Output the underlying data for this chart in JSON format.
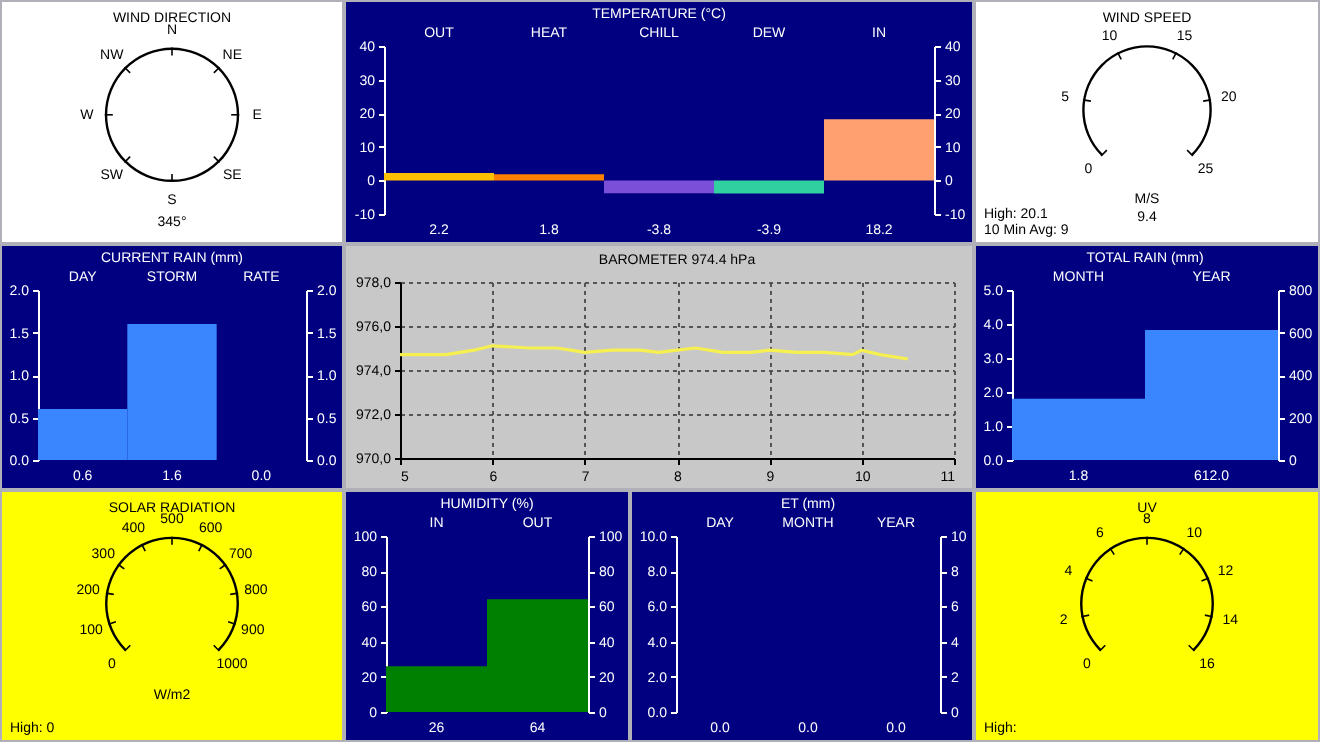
{
  "chart_data": [
    {
      "type": "other",
      "title": "WIND DIRECTION",
      "categories": [
        "N",
        "NE",
        "E",
        "SE",
        "S",
        "SW",
        "W",
        "NW"
      ],
      "subtitle": "345°"
    },
    {
      "type": "bar",
      "title": "TEMPERATURE (°C)",
      "categories": [
        "OUT",
        "HEAT",
        "CHILL",
        "DEW",
        "IN"
      ],
      "values": [
        2.2,
        1.8,
        -3.8,
        -3.9,
        18.2
      ],
      "colors": [
        "#ffc000",
        "#ff8000",
        "#7b4fd8",
        "#30d0a0",
        "#ffa070"
      ],
      "data_labels": true,
      "ylim": [
        -10,
        40
      ],
      "yticks": [
        -10,
        0,
        10,
        20,
        30,
        40
      ],
      "y2lim": [
        -10,
        40
      ],
      "y2ticks": [
        -10,
        0,
        10,
        20,
        30,
        40
      ]
    },
    {
      "type": "other",
      "title": "WIND SPEED",
      "categories": [
        "0",
        "5",
        "10",
        "15",
        "20",
        "25"
      ],
      "xlabel": "M/S",
      "subtitle": "9.4",
      "annotations": [
        "High: 20.1",
        "10 Min Avg: 9"
      ]
    },
    {
      "type": "bar",
      "title": "CURRENT RAIN (mm)",
      "categories": [
        "DAY",
        "STORM",
        "RATE"
      ],
      "values": [
        0.6,
        1.6,
        0.0
      ],
      "value_labels": [
        "0.6",
        "1.6",
        "0.0"
      ],
      "color": "#3a86ff",
      "ylim": [
        0,
        2
      ],
      "yticks": [
        {
          "value": 0,
          "label": "0.0"
        },
        {
          "value": 0.5,
          "label": "0.5"
        },
        {
          "value": 1,
          "label": "1.0"
        },
        {
          "value": 1.5,
          "label": "1.5"
        },
        {
          "value": 2,
          "label": "2.0"
        }
      ],
      "y2lim": [
        0,
        2
      ],
      "y2ticks": [
        {
          "value": 0,
          "label": "0.0"
        },
        {
          "value": 0.5,
          "label": "0.5"
        },
        {
          "value": 1,
          "label": "1.0"
        },
        {
          "value": 1.5,
          "label": "1.5"
        },
        {
          "value": 2,
          "label": "2.0"
        }
      ]
    },
    {
      "type": "line",
      "title": "BAROMETER 974.4 hPa",
      "series": [
        {
          "color": "#f5f050",
          "x": [
            5,
            5.5,
            5.8,
            6,
            6.4,
            6.7,
            7,
            7.3,
            7.6,
            7.8,
            8,
            8.2,
            8.5,
            8.8,
            9,
            9.3,
            9.6,
            9.9,
            10,
            10.2,
            10.5
          ],
          "values": [
            974.7,
            974.7,
            974.9,
            975.1,
            975.0,
            975.0,
            974.8,
            974.9,
            974.9,
            974.8,
            974.9,
            975.0,
            974.8,
            974.8,
            974.9,
            974.8,
            974.8,
            974.7,
            974.9,
            974.7,
            974.5
          ]
        }
      ],
      "xlim": [
        5,
        11
      ],
      "xticks": [
        5,
        6,
        7,
        8,
        9,
        10,
        11
      ],
      "ylim": [
        970,
        978
      ],
      "yticks": [
        {
          "value": 970,
          "label": "970,0"
        },
        {
          "value": 972,
          "label": "972,0"
        },
        {
          "value": 974,
          "label": "974,0"
        },
        {
          "value": 976,
          "label": "976,0"
        },
        {
          "value": 978,
          "label": "978,0"
        }
      ],
      "grid": true
    },
    {
      "type": "bar",
      "title": "TOTAL RAIN (mm)",
      "categories": [
        "MONTH",
        "YEAR"
      ],
      "series": [
        {
          "color": "#3a86ff",
          "values": [
            1.8,
            null
          ],
          "value_labels": [
            "1.8",
            null
          ]
        },
        {
          "color": "#3a86ff",
          "values": [
            null,
            612.0
          ],
          "value_labels": [
            null,
            "612.0"
          ],
          "axis": "y2"
        }
      ],
      "ylim": [
        0,
        5
      ],
      "yticks": [
        {
          "value": 0,
          "label": "0.0"
        },
        {
          "value": 1,
          "label": "1.0"
        },
        {
          "value": 2,
          "label": "2.0"
        },
        {
          "value": 3,
          "label": "3.0"
        },
        {
          "value": 4,
          "label": "4.0"
        },
        {
          "value": 5,
          "label": "5.0"
        }
      ],
      "y2lim": [
        0,
        800
      ],
      "y2ticks": [
        0,
        200,
        400,
        600,
        800
      ]
    },
    {
      "type": "other",
      "title": "SOLAR RADIATION",
      "categories": [
        "0",
        "100",
        "200",
        "300",
        "400",
        "500",
        "600",
        "700",
        "800",
        "900",
        "1000"
      ],
      "xlabel": "W/m2",
      "annotations": [
        "High: 0"
      ]
    },
    {
      "type": "bar",
      "title": "HUMIDITY (%)",
      "categories": [
        "IN",
        "OUT"
      ],
      "values": [
        26,
        64
      ],
      "color": "#008000",
      "data_labels": true,
      "ylim": [
        0,
        100
      ],
      "yticks": [
        0,
        20,
        40,
        60,
        80,
        100
      ],
      "y2lim": [
        0,
        100
      ],
      "y2ticks": [
        0,
        20,
        40,
        60,
        80,
        100
      ]
    },
    {
      "type": "bar",
      "title": "ET (mm)",
      "categories": [
        "DAY",
        "MONTH",
        "YEAR"
      ],
      "values": [
        0,
        0,
        0
      ],
      "value_labels": [
        "0.0",
        "0.0",
        "0.0"
      ],
      "ylim": [
        0,
        10
      ],
      "yticks": [
        {
          "value": 0,
          "label": "0.0"
        },
        {
          "value": 2,
          "label": "2.0"
        },
        {
          "value": 4,
          "label": "4.0"
        },
        {
          "value": 6,
          "label": "6.0"
        },
        {
          "value": 8,
          "label": "8.0"
        },
        {
          "value": 10,
          "label": "10.0"
        }
      ],
      "y2lim": [
        0,
        10
      ],
      "y2ticks": [
        0,
        2,
        4,
        6,
        8,
        10
      ]
    },
    {
      "type": "other",
      "title": "UV",
      "categories": [
        "0",
        "2",
        "4",
        "6",
        "8",
        "10",
        "12",
        "14",
        "16"
      ],
      "annotations": [
        "High:"
      ]
    }
  ]
}
